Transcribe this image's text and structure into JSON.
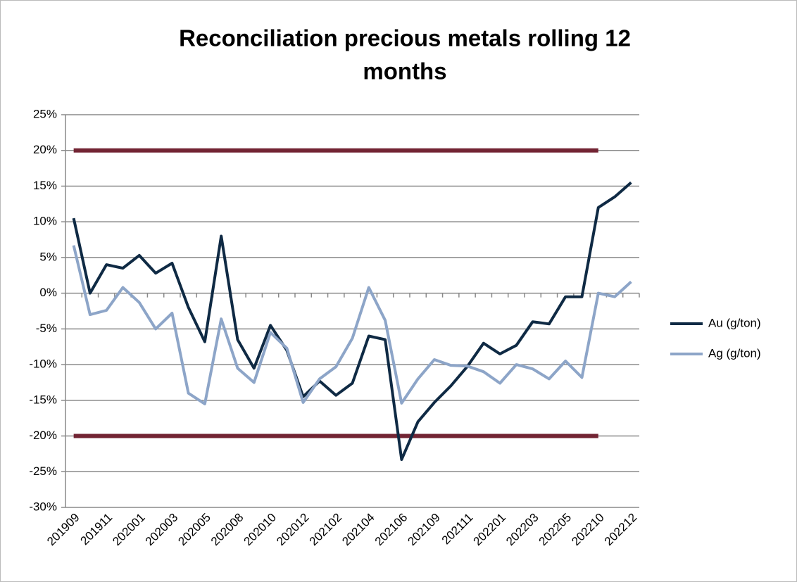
{
  "chart_data": {
    "type": "line",
    "title": [
      "Reconciliation precious metals rolling 12",
      "months"
    ],
    "categories": [
      "201909",
      null,
      "201911",
      null,
      "202001",
      null,
      "202003",
      null,
      "202005",
      null,
      "202008",
      null,
      "202010",
      null,
      "202012",
      null,
      "202102",
      null,
      "202104",
      null,
      "202106",
      null,
      "202109",
      null,
      "202111",
      null,
      "202201",
      null,
      "202203",
      null,
      "202205",
      null,
      "202210",
      null,
      "202212"
    ],
    "series": [
      {
        "name": "Au (g/ton)",
        "color": "#0f2a44",
        "values": [
          10.5,
          0,
          4,
          3.5,
          5.3,
          2.8,
          4.2,
          -2,
          -6.8,
          8,
          -6.5,
          -10.5,
          -4.5,
          -8,
          -14.5,
          -12.3,
          -14.3,
          -12.6,
          -6,
          -6.5,
          -23.3,
          -18,
          -15.3,
          -13,
          -10.3,
          -7,
          -8.5,
          -7.3,
          -4,
          -4.3,
          -0.5,
          -0.5,
          12,
          13.5,
          15.5
        ]
      },
      {
        "name": "Ag (g/ton)",
        "color": "#8da5c8",
        "values": [
          6.7,
          -3,
          -2.4,
          0.8,
          -1.3,
          -5,
          -2.8,
          -14,
          -15.5,
          -3.6,
          -10.5,
          -12.5,
          -5.5,
          -7.7,
          -15.3,
          -12,
          -10.3,
          -6.3,
          0.8,
          -3.8,
          -15.4,
          -12,
          -9.3,
          -10.1,
          -10.2,
          -11,
          -12.6,
          -10,
          -10.6,
          -12,
          -9.5,
          -11.8,
          0,
          -0.5,
          1.6
        ]
      }
    ],
    "reference_lines": [
      {
        "value": 20,
        "color": "#722433"
      },
      {
        "value": -20,
        "color": "#722433"
      }
    ],
    "ylim": [
      -30,
      25
    ],
    "yticks": [
      {
        "value": -30,
        "label": "-30%"
      },
      {
        "value": -25,
        "label": "-25%"
      },
      {
        "value": -20,
        "label": "-20%"
      },
      {
        "value": -15,
        "label": "-15%"
      },
      {
        "value": -10,
        "label": "-10%"
      },
      {
        "value": -5,
        "label": "-5%"
      },
      {
        "value": 0,
        "label": "0%"
      },
      {
        "value": 5,
        "label": "5%"
      },
      {
        "value": 10,
        "label": "10%"
      },
      {
        "value": 15,
        "label": "15%"
      },
      {
        "value": 20,
        "label": "20%"
      },
      {
        "value": 25,
        "label": "25%"
      }
    ],
    "grid": true,
    "legend": "right"
  }
}
